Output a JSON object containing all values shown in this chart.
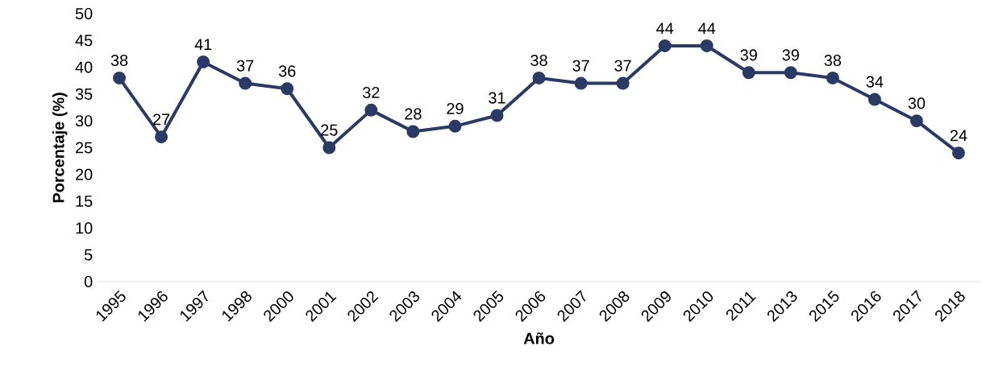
{
  "chart_data": {
    "type": "line",
    "xlabel": "Año",
    "ylabel": "Porcentaje (%)",
    "categories": [
      "1995",
      "1996",
      "1997",
      "1998",
      "2000",
      "2001",
      "2002",
      "2003",
      "2004",
      "2005",
      "2006",
      "2007",
      "2008",
      "2009",
      "2010",
      "2011",
      "2013",
      "2015",
      "2016",
      "2017",
      "2018"
    ],
    "values": [
      38,
      27,
      41,
      37,
      36,
      25,
      32,
      28,
      29,
      31,
      38,
      37,
      37,
      44,
      44,
      39,
      39,
      38,
      34,
      30,
      24
    ],
    "color": "#2b3a64",
    "marker": "circle",
    "data_labels": true,
    "grid": false,
    "ylim": [
      0,
      50
    ],
    "yticks": [
      0,
      5,
      10,
      15,
      20,
      25,
      30,
      35,
      40,
      45,
      50
    ]
  }
}
